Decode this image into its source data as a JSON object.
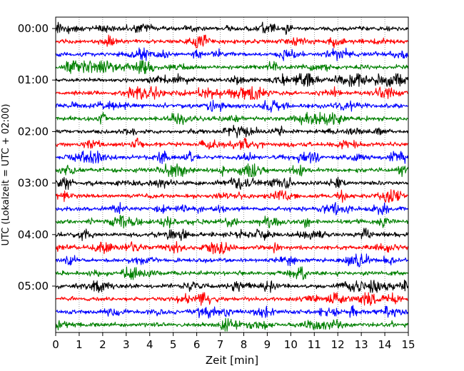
{
  "chart_data": {
    "type": "line",
    "subtype": "helicorder",
    "title": "",
    "xlabel": "Zeit  [min]",
    "ylabel": "UTC (Lokalzeit = UTC + 02:00)",
    "xlim": [
      0,
      15
    ],
    "x_ticks": [
      0,
      1,
      2,
      3,
      4,
      5,
      6,
      7,
      8,
      9,
      10,
      11,
      12,
      13,
      14,
      15
    ],
    "x_tick_labels": [
      "0",
      "1",
      "2",
      "3",
      "4",
      "5",
      "6",
      "7",
      "8",
      "9",
      "10",
      "11",
      "12",
      "13",
      "14",
      "15"
    ],
    "y_tick_labels": [
      "00:00",
      "01:00",
      "02:00",
      "03:00",
      "04:00",
      "05:00"
    ],
    "trace_interval_minutes": 15,
    "trace_count": 24,
    "trace_colors": [
      "#000000",
      "#ff0000",
      "#0000ff",
      "#008000"
    ],
    "grid": "vertical dotted lines at each minute",
    "series": [
      {
        "start": "00:00",
        "color": "#000000"
      },
      {
        "start": "00:15",
        "color": "#ff0000"
      },
      {
        "start": "00:30",
        "color": "#0000ff"
      },
      {
        "start": "00:45",
        "color": "#008000"
      },
      {
        "start": "01:00",
        "color": "#000000"
      },
      {
        "start": "01:15",
        "color": "#ff0000"
      },
      {
        "start": "01:30",
        "color": "#0000ff"
      },
      {
        "start": "01:45",
        "color": "#008000"
      },
      {
        "start": "02:00",
        "color": "#000000"
      },
      {
        "start": "02:15",
        "color": "#ff0000"
      },
      {
        "start": "02:30",
        "color": "#0000ff"
      },
      {
        "start": "02:45",
        "color": "#008000"
      },
      {
        "start": "03:00",
        "color": "#000000"
      },
      {
        "start": "03:15",
        "color": "#ff0000"
      },
      {
        "start": "03:30",
        "color": "#0000ff"
      },
      {
        "start": "03:45",
        "color": "#008000"
      },
      {
        "start": "04:00",
        "color": "#000000"
      },
      {
        "start": "04:15",
        "color": "#ff0000"
      },
      {
        "start": "04:30",
        "color": "#0000ff"
      },
      {
        "start": "04:45",
        "color": "#008000"
      },
      {
        "start": "05:00",
        "color": "#000000"
      },
      {
        "start": "05:15",
        "color": "#ff0000"
      },
      {
        "start": "05:30",
        "color": "#0000ff"
      },
      {
        "start": "05:45",
        "color": "#008000"
      }
    ]
  }
}
